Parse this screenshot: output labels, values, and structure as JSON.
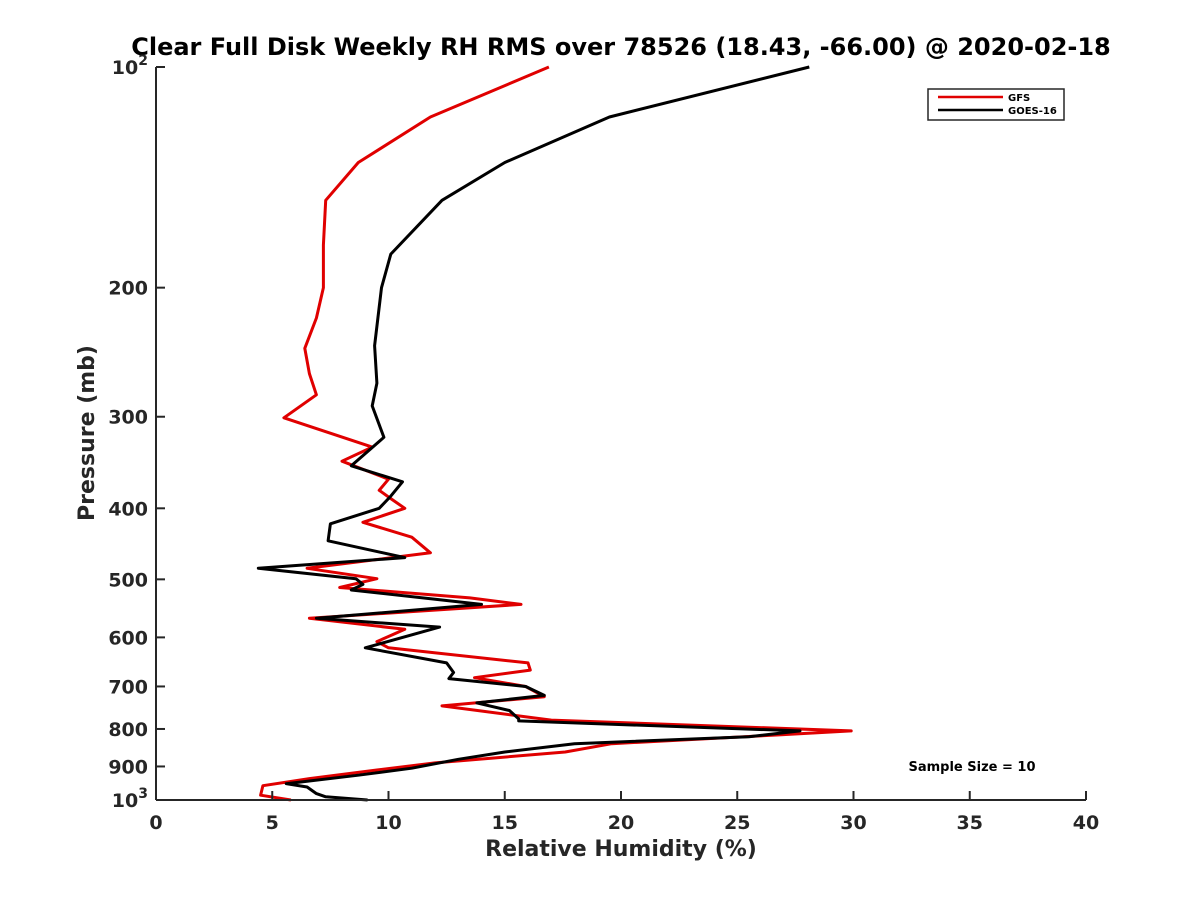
{
  "chart_data": {
    "type": "line",
    "title": "Clear Full Disk Weekly RH RMS over 78526 (18.43, -66.00) @ 2020-02-18",
    "xlabel": "Relative Humidity (%)",
    "ylabel": "Pressure (mb)",
    "xlim": [
      0,
      40
    ],
    "ylim": [
      100,
      1000
    ],
    "yscale": "log",
    "y_reversed": true,
    "grid": false,
    "legend_position": "top-right",
    "xticks": [
      0,
      5,
      10,
      15,
      20,
      25,
      30,
      35,
      40
    ],
    "yticks": [
      100,
      200,
      300,
      400,
      500,
      600,
      700,
      800,
      900,
      1000
    ],
    "ytick_labels": [
      {
        "base": "10",
        "exp": "2"
      },
      {
        "base": "200",
        "exp": ""
      },
      {
        "base": "300",
        "exp": ""
      },
      {
        "base": "400",
        "exp": ""
      },
      {
        "base": "500",
        "exp": ""
      },
      {
        "base": "600",
        "exp": ""
      },
      {
        "base": "700",
        "exp": ""
      },
      {
        "base": "800",
        "exp": ""
      },
      {
        "base": "900",
        "exp": ""
      },
      {
        "base": "10",
        "exp": "3"
      }
    ],
    "annotation": "Sample Size = 10",
    "series": [
      {
        "name": "GFS",
        "color": "#e00000",
        "points": [
          [
            16.9,
            100
          ],
          [
            11.8,
            117
          ],
          [
            8.7,
            135
          ],
          [
            7.3,
            152
          ],
          [
            7.2,
            175
          ],
          [
            7.2,
            200
          ],
          [
            6.9,
            220
          ],
          [
            6.4,
            242
          ],
          [
            6.6,
            262
          ],
          [
            6.9,
            280
          ],
          [
            5.5,
            301
          ],
          [
            9.3,
            330
          ],
          [
            8.0,
            345
          ],
          [
            10.0,
            365
          ],
          [
            9.6,
            378
          ],
          [
            10.1,
            388
          ],
          [
            10.7,
            400
          ],
          [
            8.9,
            418
          ],
          [
            11.0,
            438
          ],
          [
            11.8,
            460
          ],
          [
            6.5,
            483
          ],
          [
            9.5,
            499
          ],
          [
            7.9,
            513
          ],
          [
            13.5,
            530
          ],
          [
            15.7,
            541
          ],
          [
            6.6,
            565
          ],
          [
            10.7,
            585
          ],
          [
            9.5,
            608
          ],
          [
            10.0,
            620
          ],
          [
            16.0,
            650
          ],
          [
            16.1,
            665
          ],
          [
            13.7,
            681
          ],
          [
            15.9,
            700
          ],
          [
            16.7,
            723
          ],
          [
            12.3,
            744
          ],
          [
            17.0,
            778
          ],
          [
            29.9,
            805
          ],
          [
            26.8,
            815
          ],
          [
            19.6,
            838
          ],
          [
            17.6,
            860
          ],
          [
            12.0,
            890
          ],
          [
            9.5,
            910
          ],
          [
            6.6,
            935
          ],
          [
            4.6,
            956
          ],
          [
            4.5,
            985
          ],
          [
            5.8,
            1000
          ]
        ]
      },
      {
        "name": "GOES-16",
        "color": "#000000",
        "points": [
          [
            28.1,
            100
          ],
          [
            19.5,
            117
          ],
          [
            15.0,
            135
          ],
          [
            12.3,
            152
          ],
          [
            10.1,
            180
          ],
          [
            9.7,
            200
          ],
          [
            9.4,
            240
          ],
          [
            9.5,
            270
          ],
          [
            9.3,
            290
          ],
          [
            9.8,
            320
          ],
          [
            8.4,
            350
          ],
          [
            10.6,
            368
          ],
          [
            10.1,
            385
          ],
          [
            9.6,
            400
          ],
          [
            7.5,
            420
          ],
          [
            7.4,
            443
          ],
          [
            10.7,
            467
          ],
          [
            4.4,
            483
          ],
          [
            8.6,
            499
          ],
          [
            8.9,
            508
          ],
          [
            8.4,
            517
          ],
          [
            14.0,
            541
          ],
          [
            6.9,
            565
          ],
          [
            12.2,
            581
          ],
          [
            9.0,
            620
          ],
          [
            12.5,
            650
          ],
          [
            12.8,
            670
          ],
          [
            12.6,
            683
          ],
          [
            15.9,
            700
          ],
          [
            16.7,
            720
          ],
          [
            13.8,
            737
          ],
          [
            15.2,
            755
          ],
          [
            15.6,
            775
          ],
          [
            15.6,
            780
          ],
          [
            27.7,
            805
          ],
          [
            25.5,
            820
          ],
          [
            18.0,
            838
          ],
          [
            15.0,
            860
          ],
          [
            13.0,
            880
          ],
          [
            11.0,
            905
          ],
          [
            8.7,
            925
          ],
          [
            5.6,
            950
          ],
          [
            6.5,
            960
          ],
          [
            6.9,
            980
          ],
          [
            7.3,
            990
          ],
          [
            9.1,
            1000
          ]
        ]
      }
    ]
  }
}
